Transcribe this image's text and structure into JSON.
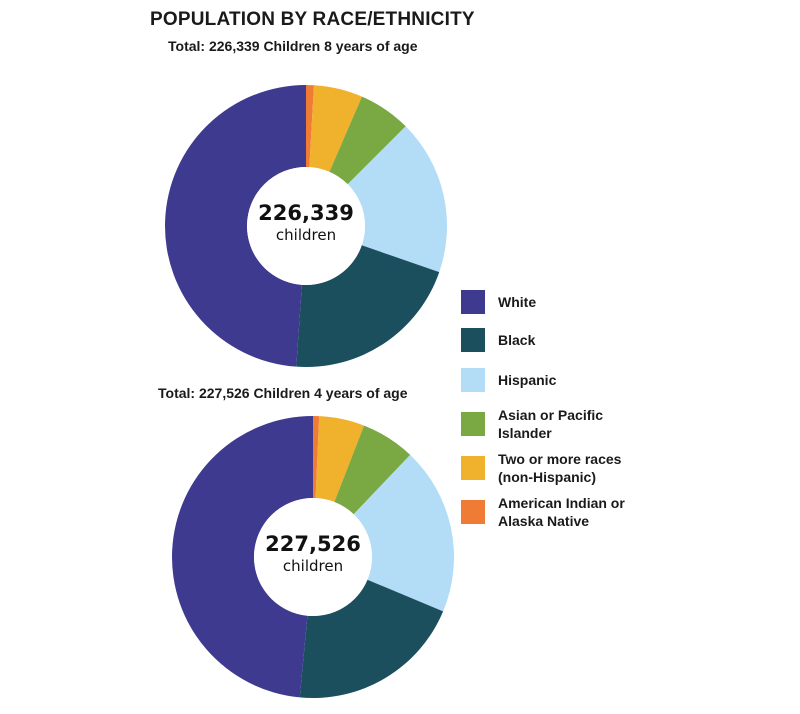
{
  "title": "POPULATION BY RACE/ETHNICITY",
  "chart_data": [
    {
      "type": "pie",
      "variant": "donut",
      "subtitle": "Total: 226,339 Children 8 years of age",
      "center_value": "226,339",
      "center_label": "children",
      "categories": [
        "White",
        "Black",
        "Hispanic",
        "Asian or Pacific Islander",
        "Two or more races (non-Hispanic)",
        "American Indian or Alaska Native"
      ],
      "values": [
        48.9,
        20.8,
        17.8,
        6.0,
        5.6,
        0.9
      ],
      "unit": "percent"
    },
    {
      "type": "pie",
      "variant": "donut",
      "subtitle": "Total: 227,526 Children 4 years of age",
      "center_value": "227,526",
      "center_label": "children",
      "categories": [
        "White",
        "Black",
        "Hispanic",
        "Asian or Pacific Islander",
        "Two or more races (non-Hispanic)",
        "American Indian or Alaska Native"
      ],
      "values": [
        48.5,
        20.2,
        19.2,
        6.2,
        5.2,
        0.7
      ],
      "unit": "percent"
    }
  ],
  "legend": {
    "placement": "right",
    "items": [
      {
        "label_lines": [
          "White"
        ],
        "color": "#3e3a8f"
      },
      {
        "label_lines": [
          "Black"
        ],
        "color": "#1b4f5e"
      },
      {
        "label_lines": [
          "Hispanic"
        ],
        "color": "#b3dcf7"
      },
      {
        "label_lines": [
          "Asian or Pacific",
          "Islander"
        ],
        "color": "#7aa843"
      },
      {
        "label_lines": [
          "Two or more races",
          "(non-Hispanic)"
        ],
        "color": "#f0b12c"
      },
      {
        "label_lines": [
          "American Indian or",
          "Alaska Native"
        ],
        "color": "#f07b35"
      }
    ]
  }
}
